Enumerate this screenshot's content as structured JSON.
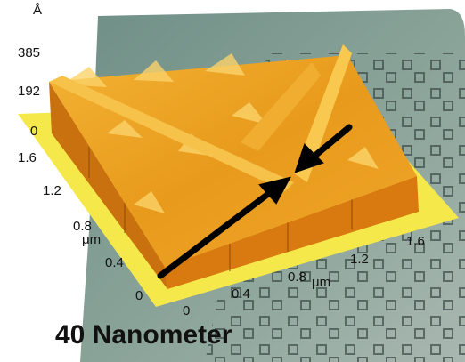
{
  "z_axis": {
    "unit": "Å",
    "ticks": [
      "385",
      "192",
      "0"
    ]
  },
  "y_axis": {
    "ticks": [
      "1.6",
      "1.2",
      "0.8",
      "0.4",
      "0"
    ],
    "unit": "μm"
  },
  "x_axis": {
    "ticks": [
      "0",
      "0.4",
      "0.8",
      "1.2",
      "1.6"
    ],
    "unit": "μm"
  },
  "caption": "40 Nanometer"
}
